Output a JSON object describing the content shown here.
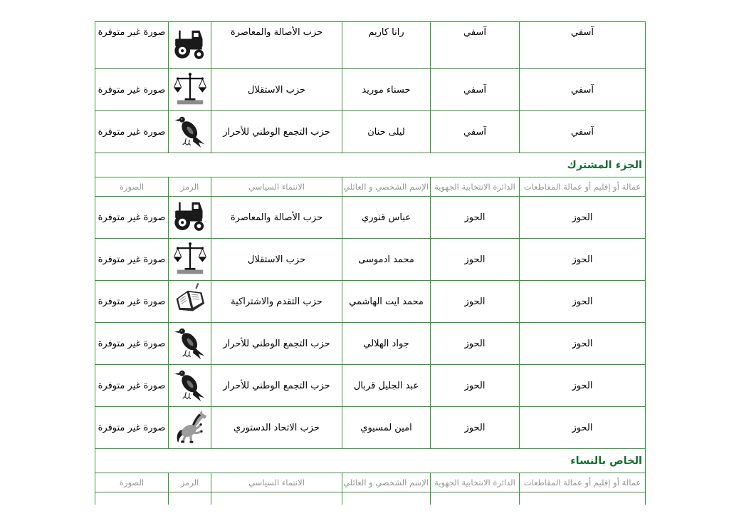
{
  "document": {
    "direction": "rtl",
    "no_photo_text": "صورة غير متوفرة",
    "colors": {
      "border_green": "#339933",
      "section_title_green": "#176b33",
      "header_text_gray": "#8f988f",
      "data_text": "#000000"
    },
    "column_headers": {
      "photo": "الصورة",
      "symbol": "الرمز",
      "affiliation": "الانتماء السياسي",
      "name": "الإسم الشخصي و العائلي",
      "district": "الدائرة الانتخابية الجهوية",
      "prefecture": "عمالة أو إقليم أو عمالة المقاطعات"
    },
    "top_rows": [
      {
        "name": "رانا كاريم",
        "affiliation": "حزب الأصالة والمعاصرة",
        "symbol_icon": "tractor-icon",
        "district": "آسفي",
        "prefecture": "آسفي",
        "valign": "top"
      },
      {
        "name": "حسناء موريد",
        "affiliation": "حزب الاستقلال",
        "symbol_icon": "scales-icon",
        "district": "آسفي",
        "prefecture": "آسفي"
      },
      {
        "name": "ليلى حنان",
        "affiliation": "حزب التجمع الوطني للأحرار",
        "symbol_icon": "pigeon-icon",
        "district": "آسفي",
        "prefecture": "آسفي"
      }
    ],
    "sections": [
      {
        "title": "الجزء المشترك",
        "rows": [
          {
            "name": "عباس قنوري",
            "affiliation": "حزب الأصالة والمعاصرة",
            "symbol_icon": "tractor-icon",
            "district": "الحوز",
            "prefecture": "الحوز"
          },
          {
            "name": "محمد ادموسى",
            "affiliation": "حزب الاستقلال",
            "symbol_icon": "scales-icon",
            "district": "الحوز",
            "prefecture": "الحوز"
          },
          {
            "name": "محمد ايت الهاشمي",
            "affiliation": "حزب التقدم والاشتراكية",
            "symbol_icon": "book-icon",
            "district": "الحوز",
            "prefecture": "الحوز"
          },
          {
            "name": "جواد الهلالي",
            "affiliation": "حزب التجمع الوطني للأحرار",
            "symbol_icon": "pigeon-icon",
            "district": "الحوز",
            "prefecture": "الحوز"
          },
          {
            "name": "عبد الجليل قربال",
            "affiliation": "حزب التجمع الوطني للأحرار",
            "symbol_icon": "pigeon-icon",
            "district": "الحوز",
            "prefecture": "الحوز"
          },
          {
            "name": "امين لمسيوي",
            "affiliation": "حزب الاتحاد الدستوري",
            "symbol_icon": "horse-icon",
            "district": "الحوز",
            "prefecture": "الحوز"
          }
        ]
      },
      {
        "title": "الخاص بالنساء",
        "rows": [],
        "has_partial_empty_row": true
      }
    ]
  }
}
